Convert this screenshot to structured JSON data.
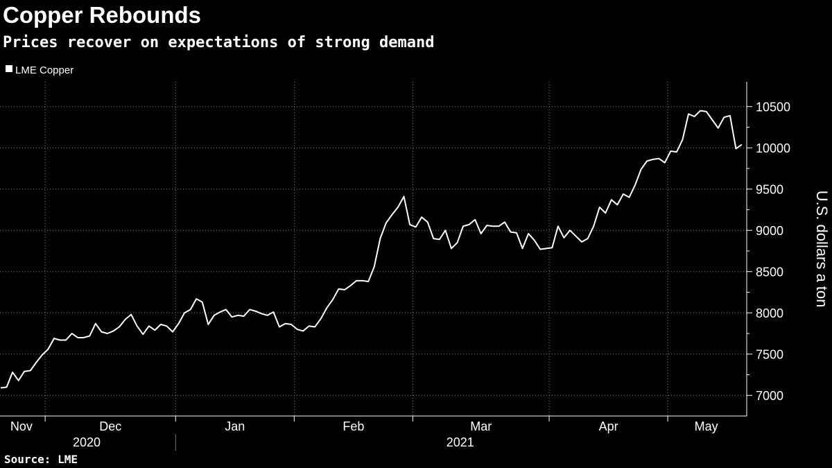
{
  "chart_data": {
    "type": "line",
    "title": "Copper Rebounds",
    "subtitle": "Prices recover on expectations of strong demand",
    "source": "Source: LME",
    "y_axis_label": "U.S. dollars a ton",
    "categories": [
      "Nov",
      "Nov",
      "Nov",
      "Nov",
      "Nov",
      "Nov",
      "Nov",
      "Nov",
      "Dec",
      "Dec",
      "Dec",
      "Dec",
      "Dec",
      "Dec",
      "Dec",
      "Dec",
      "Dec",
      "Dec",
      "Dec",
      "Dec",
      "Dec",
      "Dec",
      "Dec",
      "Dec",
      "Dec",
      "Dec",
      "Dec",
      "Dec",
      "Dec",
      "Dec",
      "Jan",
      "Jan",
      "Jan",
      "Jan",
      "Jan",
      "Jan",
      "Jan",
      "Jan",
      "Jan",
      "Jan",
      "Jan",
      "Jan",
      "Jan",
      "Jan",
      "Jan",
      "Jan",
      "Jan",
      "Jan",
      "Jan",
      "Jan",
      "Feb",
      "Feb",
      "Feb",
      "Feb",
      "Feb",
      "Feb",
      "Feb",
      "Feb",
      "Feb",
      "Feb",
      "Feb",
      "Feb",
      "Feb",
      "Feb",
      "Feb",
      "Feb",
      "Feb",
      "Feb",
      "Feb",
      "Feb",
      "Mar",
      "Mar",
      "Mar",
      "Mar",
      "Mar",
      "Mar",
      "Mar",
      "Mar",
      "Mar",
      "Mar",
      "Mar",
      "Mar",
      "Mar",
      "Mar",
      "Mar",
      "Mar",
      "Mar",
      "Mar",
      "Mar",
      "Mar",
      "Mar",
      "Mar",
      "Mar",
      "Apr",
      "Apr",
      "Apr",
      "Apr",
      "Apr",
      "Apr",
      "Apr",
      "Apr",
      "Apr",
      "Apr",
      "Apr",
      "Apr",
      "Apr",
      "Apr",
      "Apr",
      "Apr",
      "Apr",
      "Apr",
      "Apr",
      "Apr",
      "May",
      "May",
      "May",
      "May",
      "May",
      "May",
      "May",
      "May",
      "May",
      "May",
      "May",
      "May",
      "May"
    ],
    "years": [
      "2020",
      "2020",
      "2020",
      "2020",
      "2020",
      "2020",
      "2020",
      "2020",
      "2020",
      "2020",
      "2020",
      "2020",
      "2020",
      "2020",
      "2020",
      "2020",
      "2020",
      "2020",
      "2020",
      "2020",
      "2020",
      "2020",
      "2020",
      "2020",
      "2020",
      "2020",
      "2020",
      "2020",
      "2020",
      "2020",
      "2021",
      "2021",
      "2021",
      "2021",
      "2021",
      "2021",
      "2021",
      "2021",
      "2021",
      "2021",
      "2021",
      "2021",
      "2021",
      "2021",
      "2021",
      "2021",
      "2021",
      "2021",
      "2021",
      "2021",
      "2021",
      "2021",
      "2021",
      "2021",
      "2021",
      "2021",
      "2021",
      "2021",
      "2021",
      "2021",
      "2021",
      "2021",
      "2021",
      "2021",
      "2021",
      "2021",
      "2021",
      "2021",
      "2021",
      "2021",
      "2021",
      "2021",
      "2021",
      "2021",
      "2021",
      "2021",
      "2021",
      "2021",
      "2021",
      "2021",
      "2021",
      "2021",
      "2021",
      "2021",
      "2021",
      "2021",
      "2021",
      "2021",
      "2021",
      "2021",
      "2021",
      "2021",
      "2021",
      "2021",
      "2021",
      "2021",
      "2021",
      "2021",
      "2021",
      "2021",
      "2021",
      "2021",
      "2021",
      "2021",
      "2021",
      "2021",
      "2021",
      "2021",
      "2021",
      "2021",
      "2021",
      "2021",
      "2021",
      "2021",
      "2021",
      "2021",
      "2021",
      "2021",
      "2021",
      "2021",
      "2021",
      "2021",
      "2021",
      "2021",
      "2021",
      "2021"
    ],
    "series": [
      {
        "name": "LME Copper",
        "color": "#ffffff",
        "values": [
          7090,
          7100,
          7280,
          7180,
          7290,
          7300,
          7400,
          7490,
          7560,
          7690,
          7670,
          7670,
          7750,
          7700,
          7700,
          7720,
          7870,
          7770,
          7750,
          7780,
          7830,
          7920,
          7980,
          7840,
          7740,
          7840,
          7790,
          7860,
          7840,
          7770,
          7870,
          8000,
          8040,
          8170,
          8130,
          7860,
          7970,
          8010,
          8040,
          7950,
          7970,
          7960,
          8040,
          8020,
          7990,
          7970,
          8010,
          7830,
          7870,
          7860,
          7800,
          7780,
          7840,
          7830,
          7930,
          8060,
          8160,
          8290,
          8280,
          8330,
          8390,
          8390,
          8380,
          8560,
          8900,
          9090,
          9190,
          9280,
          9410,
          9070,
          9040,
          9160,
          9100,
          8900,
          8890,
          9000,
          8780,
          8850,
          9050,
          9070,
          9130,
          8960,
          9060,
          9050,
          9050,
          9100,
          8980,
          8970,
          8780,
          8960,
          8880,
          8770,
          8780,
          8790,
          9050,
          8910,
          9000,
          8930,
          8860,
          8900,
          9050,
          9280,
          9210,
          9370,
          9310,
          9440,
          9400,
          9550,
          9740,
          9840,
          9860,
          9870,
          9820,
          9960,
          9950,
          10100,
          10410,
          10380,
          10450,
          10440,
          10340,
          10240,
          10370,
          10390,
          9990,
          10040
        ]
      }
    ],
    "ylim": [
      6750,
      10800
    ],
    "yticks": [
      7000,
      7500,
      8000,
      8500,
      9000,
      9500,
      10000,
      10500
    ],
    "grid": true,
    "legend": "top-left"
  }
}
